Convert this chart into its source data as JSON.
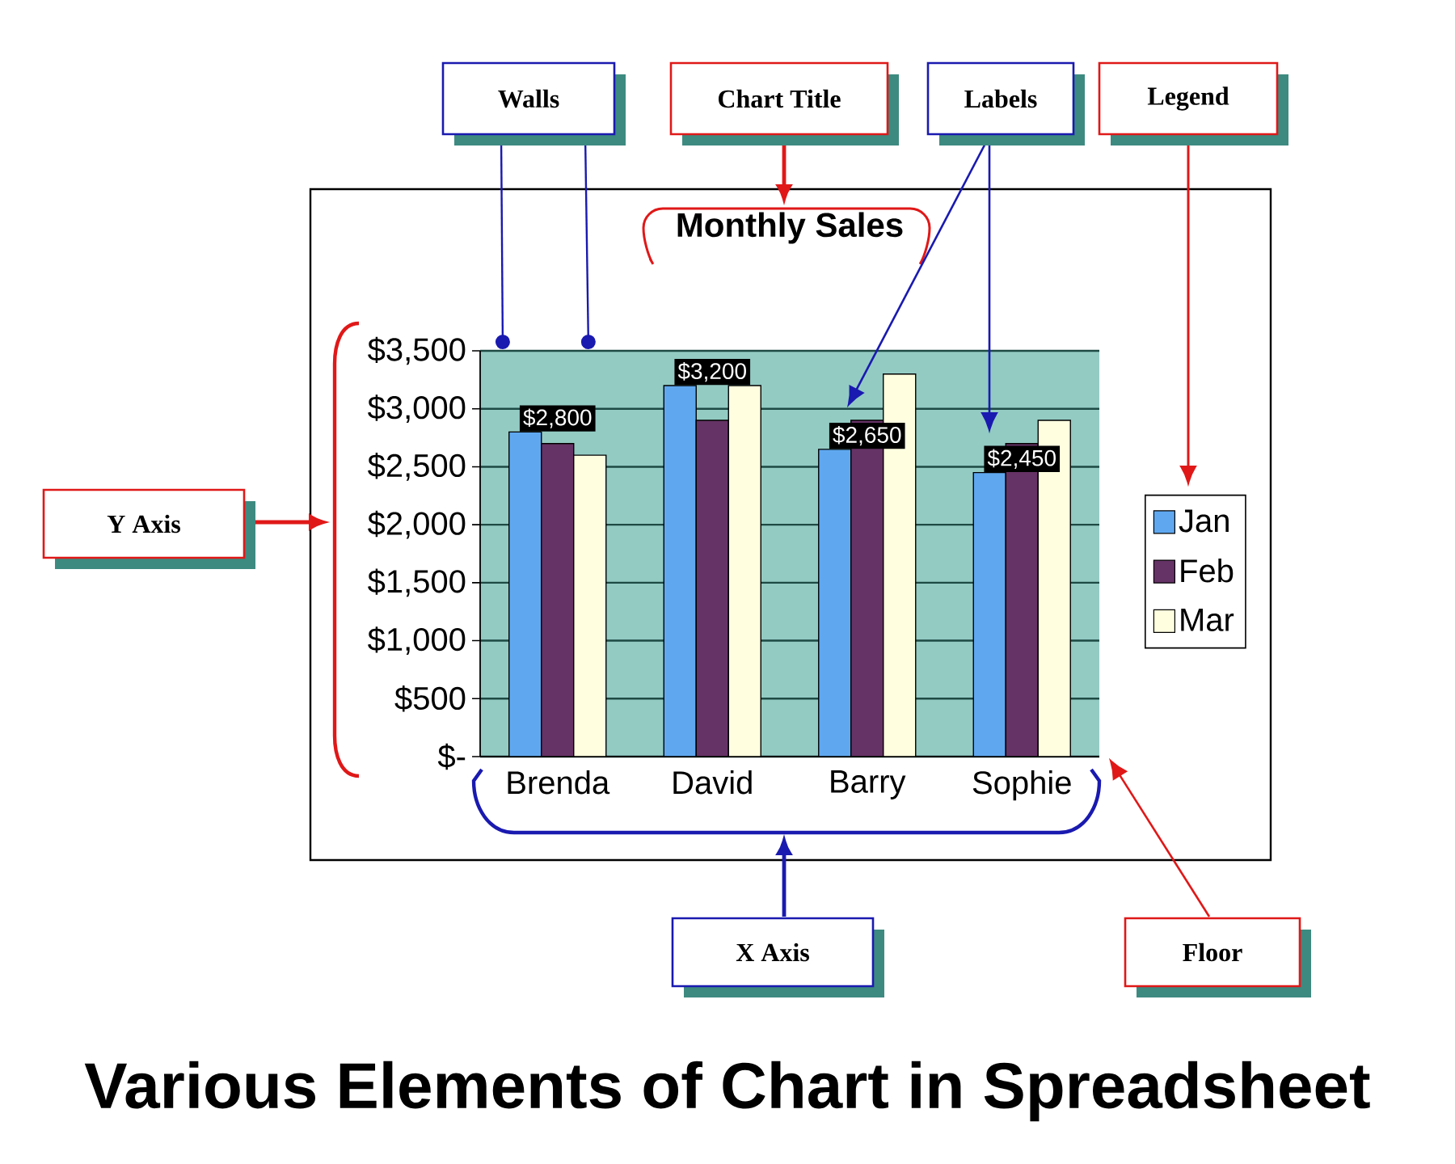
{
  "chart_data": {
    "type": "bar",
    "title": "Monthly Sales",
    "categories": [
      "Brenda",
      "David",
      "Barry",
      "Sophie"
    ],
    "series": [
      {
        "name": "Jan",
        "color": "#5fa8f0",
        "values": [
          2800,
          3200,
          2650,
          2450
        ],
        "value_labels": [
          "$2,800",
          "$3,200",
          "$2,650",
          "$2,450"
        ]
      },
      {
        "name": "Feb",
        "color": "#663366",
        "values": [
          2700,
          2900,
          2900,
          2700
        ]
      },
      {
        "name": "Mar",
        "color": "#ffffe0",
        "values": [
          2600,
          3200,
          3300,
          2900
        ]
      }
    ],
    "ylim": [
      0,
      3500
    ],
    "yticks": [
      {
        "value": 0,
        "label": "$-"
      },
      {
        "value": 500,
        "label": "$500"
      },
      {
        "value": 1000,
        "label": "$1,000"
      },
      {
        "value": 1500,
        "label": "$1,500"
      },
      {
        "value": 2000,
        "label": "$2,000"
      },
      {
        "value": 2500,
        "label": "$2,500"
      },
      {
        "value": 3000,
        "label": "$3,000"
      },
      {
        "value": 3500,
        "label": "$3,500"
      }
    ],
    "grid": "y",
    "legend": "right",
    "annotations": [
      "Walls",
      "Chart Title",
      "Labels",
      "Legend",
      "Y Axis",
      "X Axis",
      "Floor",
      "Various Elements of Chart in Spreadsheet"
    ]
  }
}
